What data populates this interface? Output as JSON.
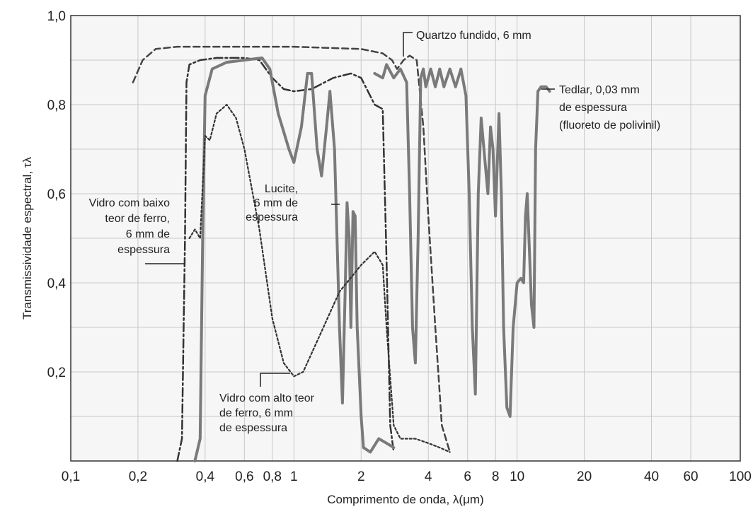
{
  "chart_data": {
    "type": "line",
    "title": "",
    "xlabel": "Comprimento de onda, λ(μm)",
    "ylabel": "Transmissividade espectral, τλ",
    "x_scale": "log",
    "xlim": [
      0.1,
      100
    ],
    "ylim": [
      0,
      1.0
    ],
    "grid": true,
    "x_ticks": [
      {
        "value": 0.1,
        "label": "0,1"
      },
      {
        "value": 0.2,
        "label": "0,2"
      },
      {
        "value": 0.4,
        "label": "0,4"
      },
      {
        "value": 0.6,
        "label": "0,6"
      },
      {
        "value": 0.8,
        "label": "0,8"
      },
      {
        "value": 1,
        "label": "1"
      },
      {
        "value": 2,
        "label": "2"
      },
      {
        "value": 4,
        "label": "4"
      },
      {
        "value": 6,
        "label": "6"
      },
      {
        "value": 8,
        "label": "8"
      },
      {
        "value": 10,
        "label": "10"
      },
      {
        "value": 20,
        "label": "20"
      },
      {
        "value": 40,
        "label": "40"
      },
      {
        "value": 60,
        "label": "60"
      },
      {
        "value": 100,
        "label": "100"
      }
    ],
    "y_ticks": [
      {
        "value": 0.2,
        "label": "0,2"
      },
      {
        "value": 0.4,
        "label": "0,4"
      },
      {
        "value": 0.6,
        "label": "0,6"
      },
      {
        "value": 0.8,
        "label": "0,8"
      },
      {
        "value": 1.0,
        "label": "1,0"
      }
    ],
    "series": [
      {
        "name": "Quartzo fundido, 6 mm",
        "style": "dashed",
        "points": [
          [
            0.19,
            0.85
          ],
          [
            0.21,
            0.9
          ],
          [
            0.24,
            0.925
          ],
          [
            0.3,
            0.93
          ],
          [
            0.5,
            0.93
          ],
          [
            1,
            0.93
          ],
          [
            2,
            0.925
          ],
          [
            2.5,
            0.915
          ],
          [
            2.75,
            0.9
          ],
          [
            2.9,
            0.88
          ],
          [
            3.1,
            0.9
          ],
          [
            3.3,
            0.91
          ],
          [
            3.55,
            0.9
          ],
          [
            3.8,
            0.75
          ],
          [
            4.0,
            0.55
          ],
          [
            4.3,
            0.3
          ],
          [
            4.6,
            0.08
          ],
          [
            5.0,
            0.02
          ]
        ]
      },
      {
        "name": "Vidro com baixo teor de ferro, 6 mm de espessura",
        "style": "dashdot",
        "points": [
          [
            0.3,
            0.0
          ],
          [
            0.315,
            0.05
          ],
          [
            0.325,
            0.5
          ],
          [
            0.33,
            0.85
          ],
          [
            0.34,
            0.89
          ],
          [
            0.38,
            0.9
          ],
          [
            0.45,
            0.905
          ],
          [
            0.6,
            0.905
          ],
          [
            0.7,
            0.9
          ],
          [
            0.8,
            0.86
          ],
          [
            0.9,
            0.835
          ],
          [
            1.0,
            0.83
          ],
          [
            1.2,
            0.835
          ],
          [
            1.5,
            0.86
          ],
          [
            1.8,
            0.87
          ],
          [
            2.0,
            0.86
          ],
          [
            2.3,
            0.8
          ],
          [
            2.5,
            0.79
          ],
          [
            2.6,
            0.45
          ],
          [
            2.7,
            0.08
          ],
          [
            2.8,
            0.02
          ]
        ]
      },
      {
        "name": "Lucite, 6 mm de espessura",
        "style": "solid-gray",
        "points": [
          [
            0.36,
            0.0
          ],
          [
            0.38,
            0.05
          ],
          [
            0.39,
            0.5
          ],
          [
            0.4,
            0.82
          ],
          [
            0.43,
            0.88
          ],
          [
            0.5,
            0.895
          ],
          [
            0.6,
            0.9
          ],
          [
            0.72,
            0.905
          ],
          [
            0.78,
            0.88
          ],
          [
            0.85,
            0.78
          ],
          [
            0.95,
            0.7
          ],
          [
            1.0,
            0.67
          ],
          [
            1.08,
            0.75
          ],
          [
            1.15,
            0.87
          ],
          [
            1.2,
            0.87
          ],
          [
            1.27,
            0.7
          ],
          [
            1.33,
            0.64
          ],
          [
            1.4,
            0.75
          ],
          [
            1.45,
            0.83
          ],
          [
            1.52,
            0.7
          ],
          [
            1.6,
            0.3
          ],
          [
            1.65,
            0.13
          ],
          [
            1.7,
            0.4
          ],
          [
            1.73,
            0.58
          ],
          [
            1.77,
            0.5
          ],
          [
            1.8,
            0.3
          ],
          [
            1.84,
            0.56
          ],
          [
            1.88,
            0.55
          ],
          [
            1.92,
            0.3
          ],
          [
            2.0,
            0.1
          ],
          [
            2.05,
            0.03
          ],
          [
            2.2,
            0.02
          ],
          [
            2.4,
            0.05
          ],
          [
            2.6,
            0.04
          ],
          [
            2.8,
            0.03
          ]
        ]
      },
      {
        "name": "Vidro com alto teor de ferro, 6 mm de espessura",
        "style": "dotted",
        "points": [
          [
            0.34,
            0.5
          ],
          [
            0.36,
            0.52
          ],
          [
            0.38,
            0.5
          ],
          [
            0.4,
            0.73
          ],
          [
            0.42,
            0.72
          ],
          [
            0.45,
            0.78
          ],
          [
            0.5,
            0.8
          ],
          [
            0.55,
            0.77
          ],
          [
            0.6,
            0.7
          ],
          [
            0.7,
            0.52
          ],
          [
            0.8,
            0.32
          ],
          [
            0.9,
            0.22
          ],
          [
            1.0,
            0.19
          ],
          [
            1.1,
            0.2
          ],
          [
            1.3,
            0.28
          ],
          [
            1.6,
            0.38
          ],
          [
            2.0,
            0.44
          ],
          [
            2.3,
            0.47
          ],
          [
            2.5,
            0.44
          ],
          [
            2.6,
            0.3
          ],
          [
            2.8,
            0.08
          ],
          [
            3.0,
            0.05
          ],
          [
            3.5,
            0.05
          ],
          [
            4.0,
            0.04
          ],
          [
            4.5,
            0.03
          ],
          [
            5.0,
            0.02
          ]
        ]
      },
      {
        "name": "Tedlar, 0,03 mm de espessura (fluoreto de polivinil)",
        "style": "solid-gray",
        "points": [
          [
            2.3,
            0.87
          ],
          [
            2.5,
            0.86
          ],
          [
            2.6,
            0.89
          ],
          [
            2.8,
            0.86
          ],
          [
            3.0,
            0.88
          ],
          [
            3.2,
            0.85
          ],
          [
            3.3,
            0.6
          ],
          [
            3.4,
            0.3
          ],
          [
            3.5,
            0.22
          ],
          [
            3.6,
            0.5
          ],
          [
            3.7,
            0.86
          ],
          [
            3.8,
            0.88
          ],
          [
            3.9,
            0.84
          ],
          [
            4.1,
            0.88
          ],
          [
            4.3,
            0.84
          ],
          [
            4.5,
            0.88
          ],
          [
            4.7,
            0.84
          ],
          [
            5.0,
            0.88
          ],
          [
            5.3,
            0.84
          ],
          [
            5.6,
            0.88
          ],
          [
            5.9,
            0.82
          ],
          [
            6.1,
            0.6
          ],
          [
            6.3,
            0.3
          ],
          [
            6.5,
            0.15
          ],
          [
            6.7,
            0.6
          ],
          [
            6.9,
            0.77
          ],
          [
            7.1,
            0.7
          ],
          [
            7.4,
            0.6
          ],
          [
            7.6,
            0.75
          ],
          [
            7.8,
            0.7
          ],
          [
            8.0,
            0.55
          ],
          [
            8.3,
            0.78
          ],
          [
            8.5,
            0.6
          ],
          [
            8.7,
            0.3
          ],
          [
            9.0,
            0.12
          ],
          [
            9.3,
            0.1
          ],
          [
            9.6,
            0.3
          ],
          [
            10.0,
            0.4
          ],
          [
            10.4,
            0.41
          ],
          [
            10.7,
            0.4
          ],
          [
            10.9,
            0.55
          ],
          [
            11.1,
            0.6
          ],
          [
            11.3,
            0.5
          ],
          [
            11.6,
            0.35
          ],
          [
            11.9,
            0.3
          ],
          [
            12.1,
            0.7
          ],
          [
            12.4,
            0.83
          ],
          [
            12.8,
            0.84
          ],
          [
            13.5,
            0.84
          ],
          [
            14.0,
            0.83
          ]
        ]
      }
    ],
    "annotations": [
      {
        "id": "quartzo",
        "lines": [
          "Quartzo fundido, 6 mm"
        ]
      },
      {
        "id": "tedlar",
        "lines": [
          "Tedlar, 0,03 mm",
          "de espessura",
          "(fluoreto de polivinil)"
        ]
      },
      {
        "id": "lucite",
        "lines": [
          "Lucite,",
          "6 mm de",
          "espessura"
        ]
      },
      {
        "id": "baixo",
        "lines": [
          "Vidro com baixo",
          "teor de ferro,",
          "6 mm de",
          "espessura"
        ]
      },
      {
        "id": "alto",
        "lines": [
          "Vidro com alto teor",
          "de ferro, 6 mm",
          "de espessura"
        ]
      }
    ]
  }
}
